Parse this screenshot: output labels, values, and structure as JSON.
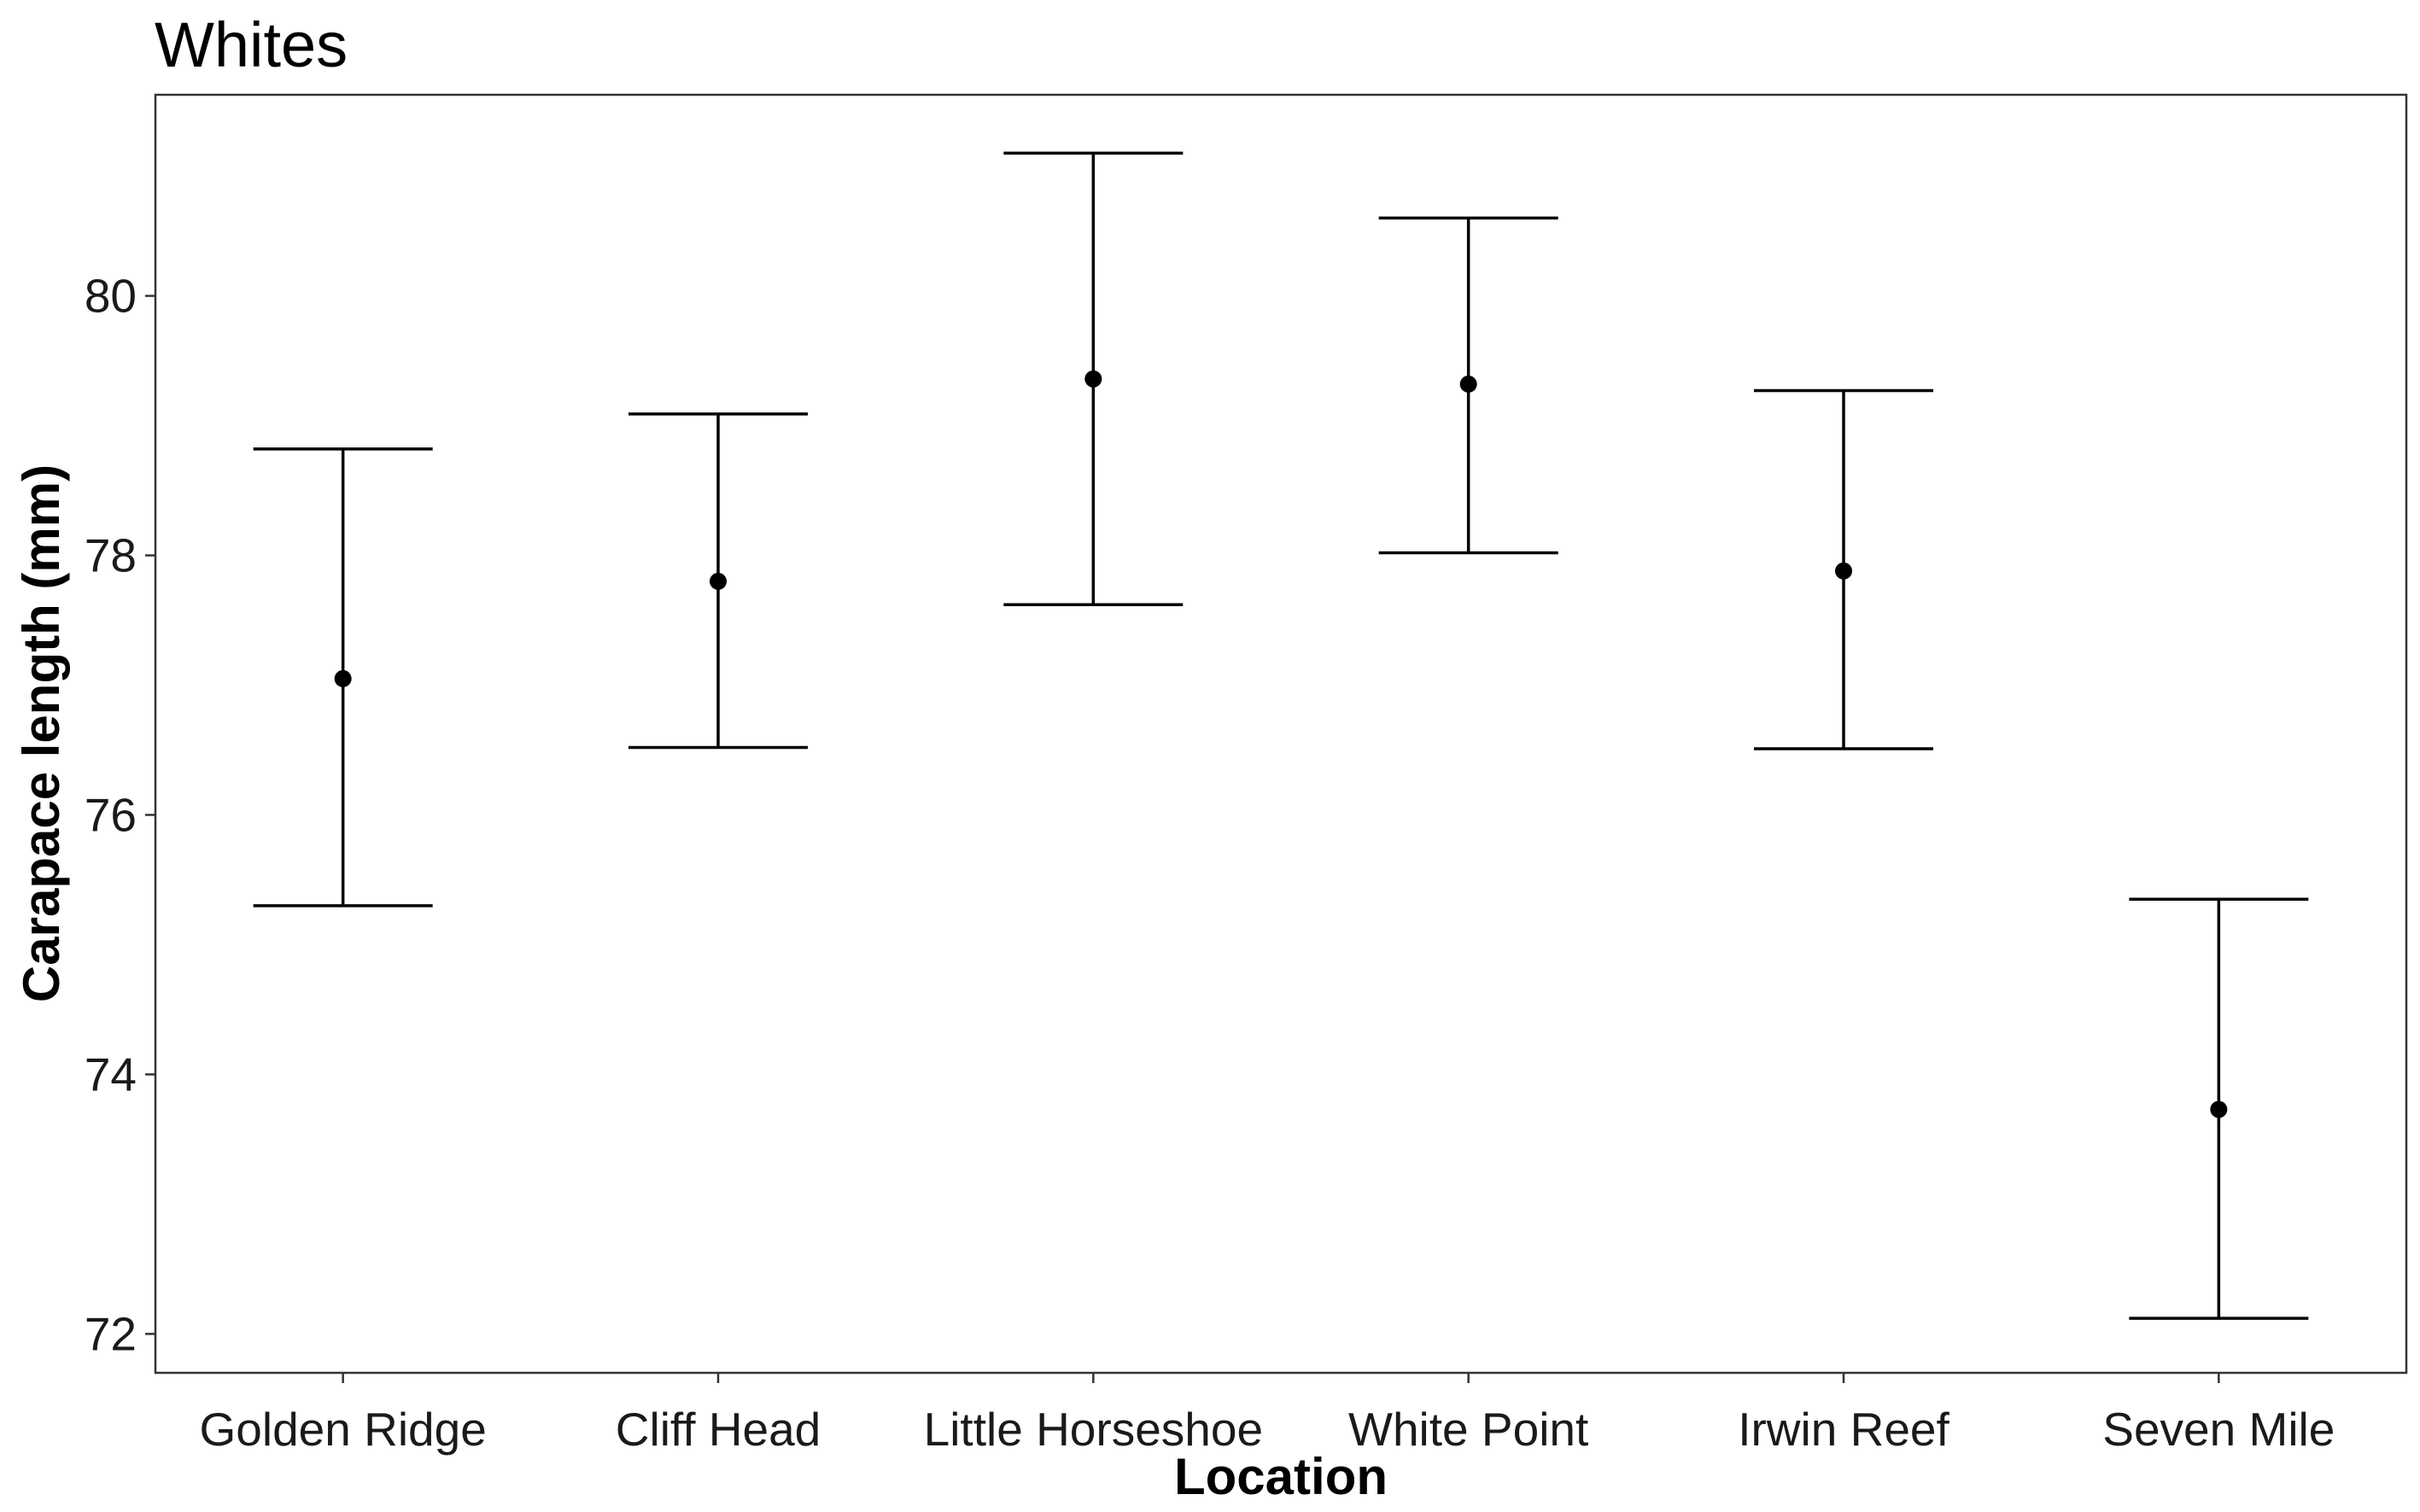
{
  "chart_data": {
    "type": "errorbar",
    "title": "Whites",
    "xlabel": "Location",
    "ylabel": "Carapace length (mm)",
    "categories": [
      "Golden Ridge",
      "Cliff Head",
      "Little Horseshoe",
      "White Point",
      "Irwin Reef",
      "Seven Mile"
    ],
    "mean": [
      77.05,
      77.8,
      79.36,
      79.32,
      77.88,
      73.73
    ],
    "lower": [
      75.3,
      76.52,
      77.62,
      78.02,
      76.51,
      72.12
    ],
    "upper": [
      78.82,
      79.09,
      81.1,
      80.6,
      79.27,
      75.35
    ],
    "yticks": [
      "72",
      "74",
      "76",
      "78",
      "80"
    ],
    "ylim": [
      71.7,
      81.55
    ],
    "grid": false,
    "legend": "none"
  }
}
